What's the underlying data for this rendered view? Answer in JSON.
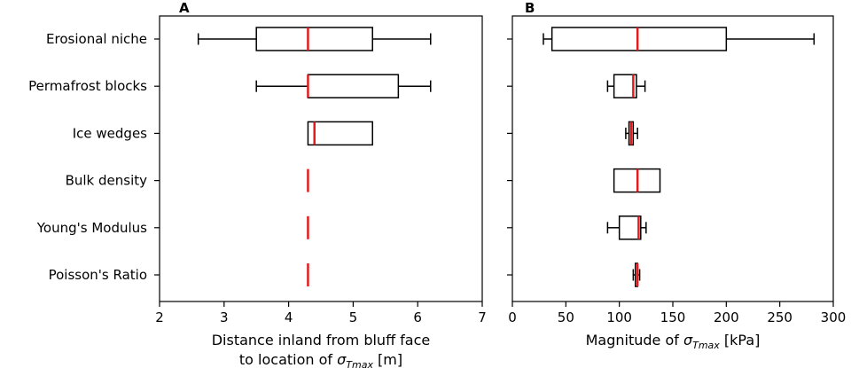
{
  "colors": {
    "median": "#e41a1c",
    "box": "#000000"
  },
  "chart_data": [
    {
      "type": "box",
      "panel": "A",
      "categories": [
        "Erosional niche",
        "Permafrost blocks",
        "Ice wedges",
        "Bulk density",
        "Young's Modulus",
        "Poisson's Ratio"
      ],
      "xlabel_line1": "Distance inland from bluff face",
      "xlabel_line2_prefix": "to location of ",
      "xlabel_symbol": "σ",
      "xlabel_subscript": "Tmax",
      "xlabel_unit": " [m]",
      "xlim": [
        2,
        7
      ],
      "xticks": [
        "2",
        "3",
        "4",
        "5",
        "6",
        "7"
      ],
      "boxes": [
        {
          "category": "Erosional niche",
          "whisker_low": 2.6,
          "q1": 3.5,
          "median": 4.3,
          "q3": 5.3,
          "whisker_high": 6.2
        },
        {
          "category": "Permafrost blocks",
          "whisker_low": 3.5,
          "q1": 4.3,
          "median": 4.3,
          "q3": 5.7,
          "whisker_high": 6.2
        },
        {
          "category": "Ice wedges",
          "whisker_low": 4.3,
          "q1": 4.3,
          "median": 4.4,
          "q3": 5.3,
          "whisker_high": 5.3
        },
        {
          "category": "Bulk density",
          "whisker_low": 4.3,
          "q1": 4.3,
          "median": 4.3,
          "q3": 4.3,
          "whisker_high": 4.3
        },
        {
          "category": "Young's Modulus",
          "whisker_low": 4.3,
          "q1": 4.3,
          "median": 4.3,
          "q3": 4.3,
          "whisker_high": 4.3
        },
        {
          "category": "Poisson's Ratio",
          "whisker_low": 4.3,
          "q1": 4.3,
          "median": 4.3,
          "q3": 4.3,
          "whisker_high": 4.3
        }
      ]
    },
    {
      "type": "box",
      "panel": "B",
      "categories": [
        "Erosional niche",
        "Permafrost blocks",
        "Ice wedges",
        "Bulk density",
        "Young's Modulus",
        "Poisson's Ratio"
      ],
      "xlabel_prefix": "Magnitude of ",
      "xlabel_symbol": "σ",
      "xlabel_subscript": "Tmax",
      "xlabel_unit": " [kPa]",
      "xlim": [
        0,
        300
      ],
      "xticks": [
        "0",
        "50",
        "100",
        "150",
        "200",
        "250",
        "300"
      ],
      "boxes": [
        {
          "category": "Erosional niche",
          "whisker_low": 29,
          "q1": 37,
          "median": 117,
          "q3": 200,
          "whisker_high": 282
        },
        {
          "category": "Permafrost blocks",
          "whisker_low": 89,
          "q1": 95,
          "median": 113,
          "q3": 116,
          "whisker_high": 124
        },
        {
          "category": "Ice wedges",
          "whisker_low": 106,
          "q1": 109,
          "median": 111,
          "q3": 113,
          "whisker_high": 117
        },
        {
          "category": "Bulk density",
          "whisker_low": 95,
          "q1": 95,
          "median": 117,
          "q3": 138,
          "whisker_high": 138
        },
        {
          "category": "Young's Modulus",
          "whisker_low": 89,
          "q1": 100,
          "median": 118,
          "q3": 120,
          "whisker_high": 125
        },
        {
          "category": "Poisson's Ratio",
          "whisker_low": 113,
          "q1": 115,
          "median": 117,
          "q3": 117,
          "whisker_high": 119
        }
      ]
    }
  ]
}
